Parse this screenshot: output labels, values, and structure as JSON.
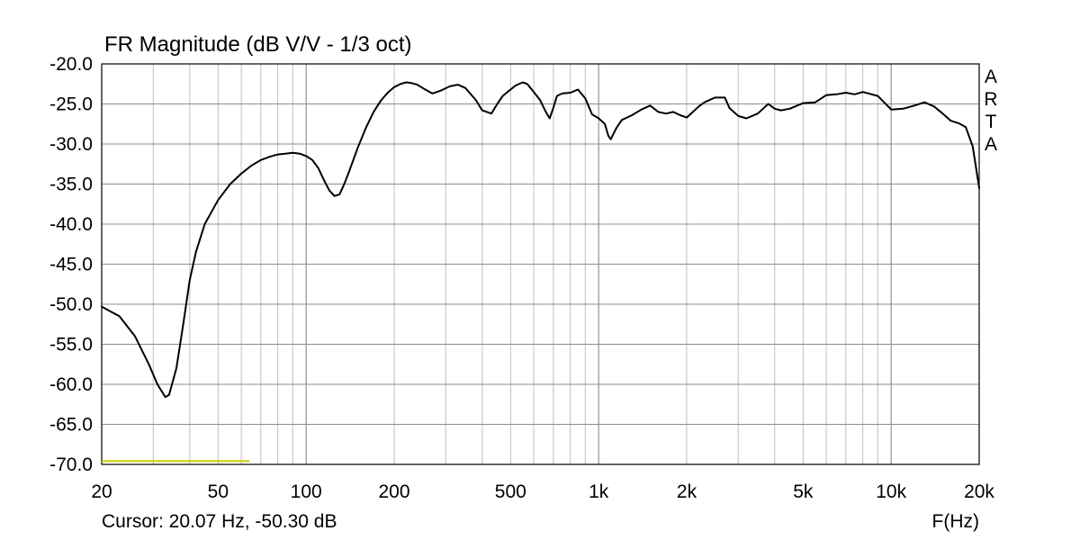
{
  "chart_data": {
    "type": "line",
    "title": "FR Magnitude (dB V/V - 1/3 oct)",
    "xlabel": "F(Hz)",
    "ylabel": "",
    "x_scale": "log",
    "xlim": [
      20,
      20000
    ],
    "ylim": [
      -70,
      -20
    ],
    "grid": true,
    "x_ticks": [
      {
        "value": 20,
        "label": "20"
      },
      {
        "value": 50,
        "label": "50"
      },
      {
        "value": 100,
        "label": "100"
      },
      {
        "value": 200,
        "label": "200"
      },
      {
        "value": 500,
        "label": "500"
      },
      {
        "value": 1000,
        "label": "1k"
      },
      {
        "value": 2000,
        "label": "2k"
      },
      {
        "value": 5000,
        "label": "5k"
      },
      {
        "value": 10000,
        "label": "10k"
      },
      {
        "value": 20000,
        "label": "20k"
      }
    ],
    "y_ticks": [
      {
        "value": -20,
        "label": "-20.0"
      },
      {
        "value": -25,
        "label": "-25.0"
      },
      {
        "value": -30,
        "label": "-30.0"
      },
      {
        "value": -35,
        "label": "-35.0"
      },
      {
        "value": -40,
        "label": "-40.0"
      },
      {
        "value": -45,
        "label": "-45.0"
      },
      {
        "value": -50,
        "label": "-50.0"
      },
      {
        "value": -55,
        "label": "-55.0"
      },
      {
        "value": -60,
        "label": "-60.0"
      },
      {
        "value": -65,
        "label": "-65.0"
      },
      {
        "value": -70,
        "label": "-70.0"
      }
    ],
    "series": [
      {
        "color": "#000000",
        "x": [
          20,
          23,
          26,
          29,
          31,
          33,
          34,
          36,
          38,
          40,
          42,
          45,
          50,
          55,
          60,
          65,
          70,
          75,
          80,
          85,
          90,
          95,
          100,
          105,
          110,
          115,
          120,
          125,
          130,
          135,
          140,
          150,
          160,
          170,
          180,
          190,
          200,
          210,
          220,
          230,
          240,
          250,
          270,
          290,
          310,
          330,
          350,
          380,
          400,
          430,
          450,
          470,
          500,
          520,
          550,
          570,
          600,
          630,
          660,
          680,
          700,
          720,
          750,
          800,
          850,
          900,
          950,
          1000,
          1050,
          1080,
          1100,
          1150,
          1200,
          1300,
          1400,
          1500,
          1600,
          1700,
          1800,
          1900,
          2000,
          2100,
          2200,
          2300,
          2500,
          2700,
          2800,
          3000,
          3200,
          3500,
          3800,
          4000,
          4200,
          4500,
          5000,
          5500,
          6000,
          6500,
          7000,
          7500,
          8000,
          9000,
          10000,
          11000,
          12000,
          13000,
          14000,
          15000,
          16000,
          17000,
          18000,
          19000,
          20000
        ],
        "y": [
          -50.3,
          -51.5,
          -54.0,
          -57.5,
          -60.0,
          -61.6,
          -61.3,
          -58.0,
          -52.5,
          -47.0,
          -43.5,
          -40.0,
          -37.0,
          -35.0,
          -33.7,
          -32.7,
          -32.0,
          -31.6,
          -31.3,
          -31.2,
          -31.1,
          -31.2,
          -31.5,
          -32.0,
          -33.0,
          -34.5,
          -35.8,
          -36.5,
          -36.3,
          -35.0,
          -33.5,
          -30.5,
          -28.0,
          -26.0,
          -24.6,
          -23.6,
          -22.9,
          -22.5,
          -22.3,
          -22.4,
          -22.6,
          -23.0,
          -23.7,
          -23.3,
          -22.8,
          -22.6,
          -23.0,
          -24.5,
          -25.8,
          -26.2,
          -25.0,
          -24.0,
          -23.2,
          -22.7,
          -22.3,
          -22.5,
          -23.5,
          -24.5,
          -26.0,
          -26.8,
          -25.5,
          -24.0,
          -23.7,
          -23.6,
          -23.2,
          -24.3,
          -26.3,
          -26.8,
          -27.5,
          -29.0,
          -29.4,
          -28.0,
          -27.0,
          -26.4,
          -25.7,
          -25.2,
          -26.0,
          -26.2,
          -26.0,
          -26.4,
          -26.7,
          -26.0,
          -25.3,
          -24.8,
          -24.2,
          -24.2,
          -25.5,
          -26.5,
          -26.8,
          -26.2,
          -25.0,
          -25.6,
          -25.8,
          -25.6,
          -24.9,
          -24.8,
          -23.9,
          -23.8,
          -23.6,
          -23.8,
          -23.5,
          -24.0,
          -25.7,
          -25.6,
          -25.2,
          -24.8,
          -25.3,
          -26.2,
          -27.1,
          -27.4,
          -27.9,
          -30.3,
          -35.5
        ]
      }
    ],
    "extra_series": [
      {
        "color": "#c8c800",
        "x": [
          20,
          64
        ],
        "y": [
          -69.6,
          -69.6
        ]
      }
    ]
  },
  "brand": [
    "A",
    "R",
    "T",
    "A"
  ],
  "cursor": "Cursor: 20.07 Hz, -50.30 dB"
}
